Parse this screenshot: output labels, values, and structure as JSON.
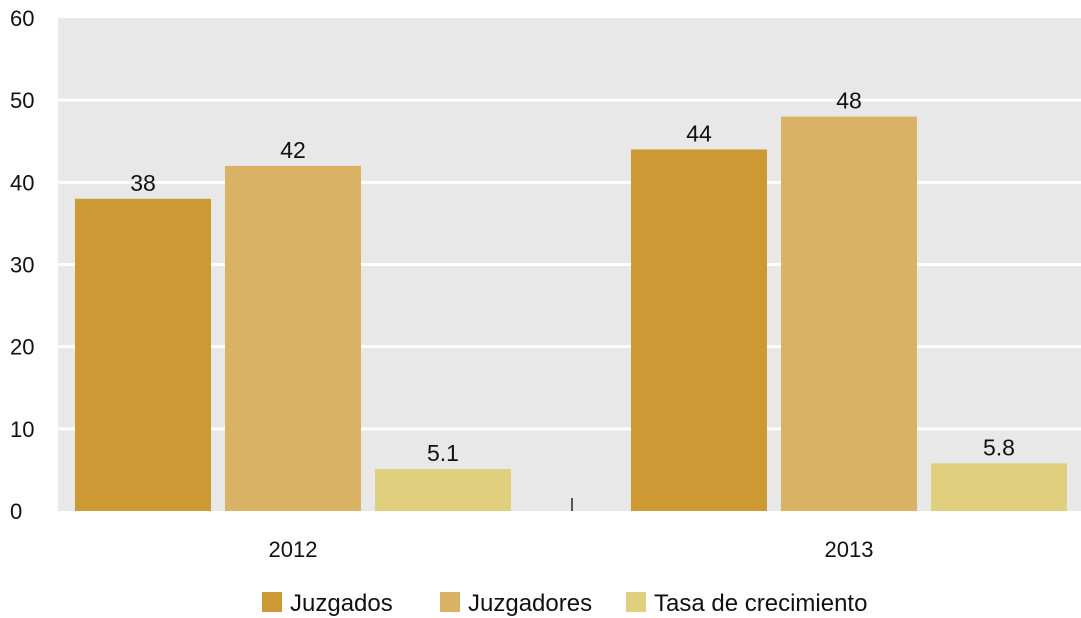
{
  "chart_data": {
    "type": "bar",
    "categories": [
      "2012",
      "2013"
    ],
    "series": [
      {
        "name": "Juzgados",
        "values": [
          38,
          44
        ],
        "labels": [
          "38",
          "44"
        ],
        "color": "#CC9934"
      },
      {
        "name": "Juzgadores",
        "values": [
          42,
          48
        ],
        "labels": [
          "42",
          "48"
        ],
        "color": "#D9B266"
      },
      {
        "name": "Tasa de crecimiento",
        "values": [
          5.1,
          5.8
        ],
        "labels": [
          "5.1",
          "5.8"
        ],
        "color": "#E0D07E"
      }
    ],
    "yticks": [
      "0",
      "10",
      "20",
      "30",
      "40",
      "50",
      "60"
    ],
    "ylim": [
      0,
      60
    ],
    "title": "",
    "xlabel": "",
    "ylabel": "",
    "grid": true,
    "legend_position": "bottom",
    "plot_background": "#E8E8E8",
    "grid_color": "#FFFFFF"
  }
}
